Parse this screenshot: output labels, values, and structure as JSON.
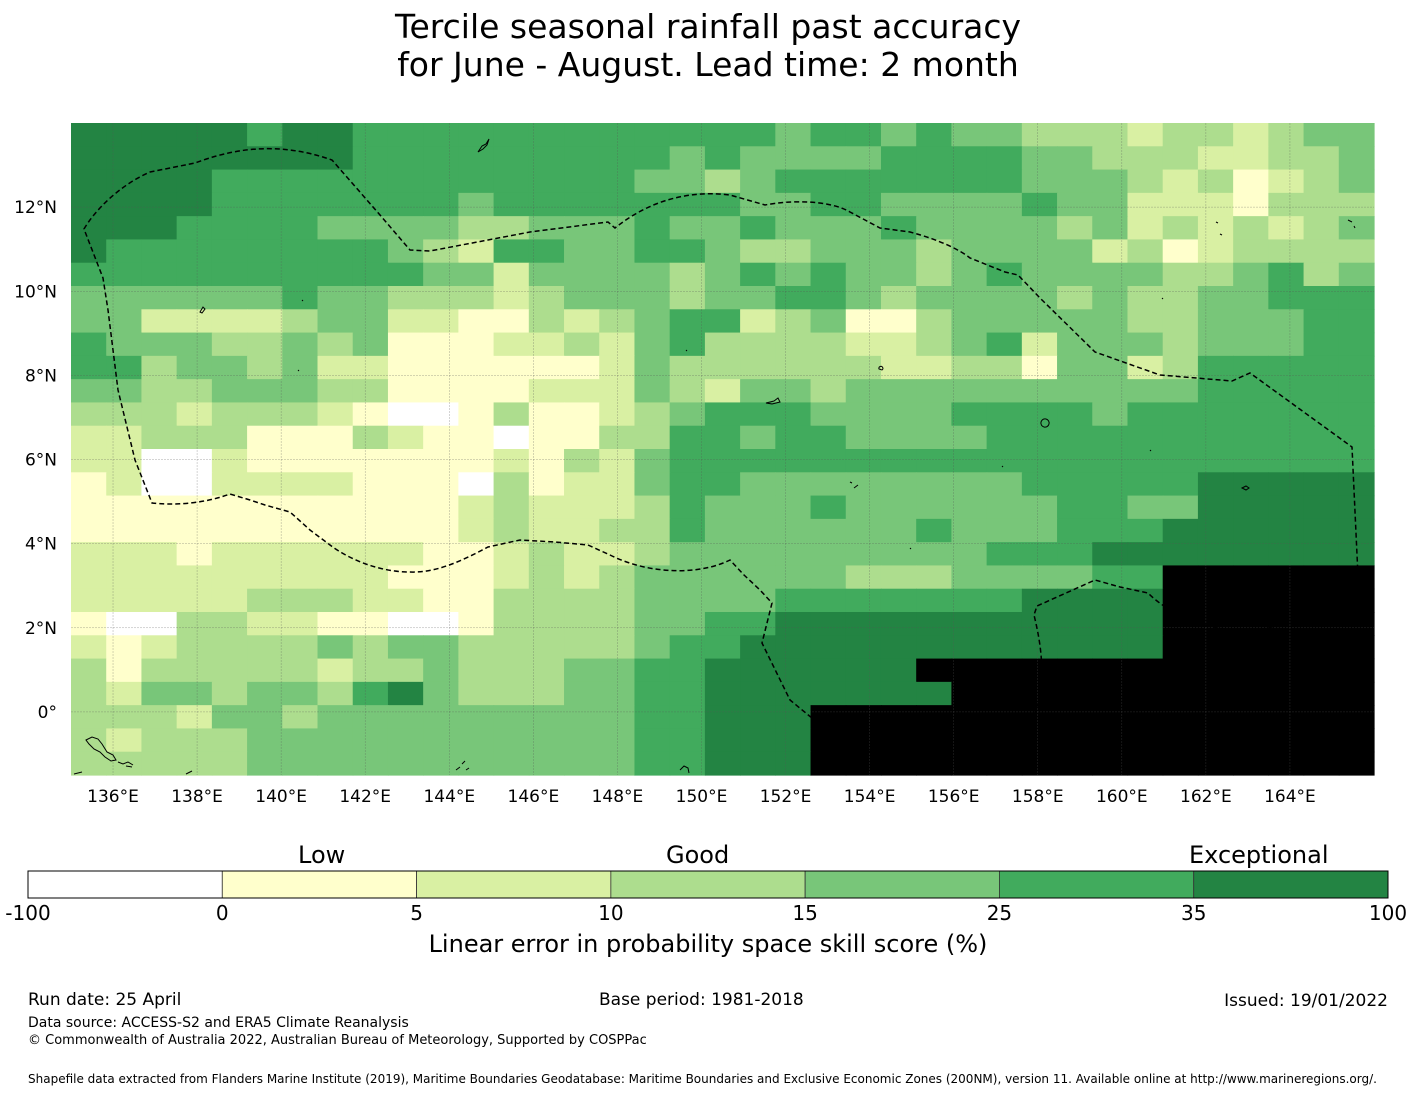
{
  "title": {
    "line1": "Tercile seasonal rainfall past accuracy",
    "line2": "for June - August. Lead time: 2 month"
  },
  "map": {
    "lon_range": [
      135.0,
      166.0
    ],
    "lat_range": [
      -1.5,
      14.0
    ],
    "lon_ticks": [
      "136°E",
      "138°E",
      "140°E",
      "142°E",
      "144°E",
      "146°E",
      "148°E",
      "150°E",
      "152°E",
      "154°E",
      "156°E",
      "158°E",
      "160°E",
      "162°E",
      "164°E"
    ],
    "lon_tick_values": [
      136,
      138,
      140,
      142,
      144,
      146,
      148,
      150,
      152,
      154,
      156,
      158,
      160,
      162,
      164
    ],
    "lat_ticks": [
      "12°N",
      "10°N",
      "8°N",
      "6°N",
      "4°N",
      "2°N",
      "0°"
    ],
    "lat_tick_values": [
      12,
      10,
      8,
      6,
      4,
      2,
      0
    ],
    "gridlines": true,
    "boundary": "dashed",
    "grid_cols": 37,
    "grid_rows": 28,
    "score_grid": [
      "6666656655555555555545545443332332344",
      "6666666655555555545444455554433322334",
      "6666555555555555443455555554443231234",
      "6666555555545555555445544445442221333",
      "6665555444433444544544454444342323234",
      "6555555554325544554334443444423123333",
      "5555555555442444434545443454444334534",
      "4444445443332344434455434444343344555",
      "4422223442211323455234113444443344455",
      "5444334341112232453333223452444344455",
      "5534434221111112433333322331442355555",
      "4433444331111222432443444444444455555",
      "3332333210013112345554444555545555555",
      "2233311132110113355455444455555555555",
      "2200211111112132455555555555555555555",
      "1200222211103122455444444445555566666",
      "1111111111123222354445444444554466666",
      "1111111111123223354444445444555666666",
      "2221222222112322344444444455566666666",
      "2222222221112323444444333444455777777",
      "2222233322113333444455555556666777777",
      "1003322110013333445566666666666777777",
      "2123333434433333455666666666666777777",
      "3133333233433344556666667777777777777",
      "3244344356433344556666666777777777777",
      "3332443444444444556667777777777777777",
      "3233344444444444556667777777777777777",
      "3333344444444444556667777777777777777"
    ]
  },
  "legend": {
    "categories": [
      "Low",
      "Good",
      "Exceptional"
    ],
    "tick_labels": [
      "-100",
      "0",
      "5",
      "10",
      "15",
      "25",
      "35",
      "100"
    ],
    "colors": [
      "#ffffff",
      "#ffffcc",
      "#d9f0a3",
      "#addd8e",
      "#78c679",
      "#41ab5d",
      "#238443"
    ],
    "axis_label": "Linear error in probability space skill score (%)"
  },
  "footer": {
    "run_date": "Run date: 25 April",
    "base_period": "Base period: 1981-2018",
    "issued": "Issued: 19/01/2022",
    "data_source": "Data source: ACCESS-S2 and ERA5 Climate Reanalysis",
    "copyright": "© Commonwealth of Australia 2022, Australian Bureau of Meteorology, Supported by COSPPac",
    "shapefile": "Shapefile data extracted from Flanders Marine Institute (2019), Maritime Boundaries Geodatabase: Maritime Boundaries and Exclusive Economic Zones (200NM), version 11. Available online at http://www.marineregions.org/."
  }
}
